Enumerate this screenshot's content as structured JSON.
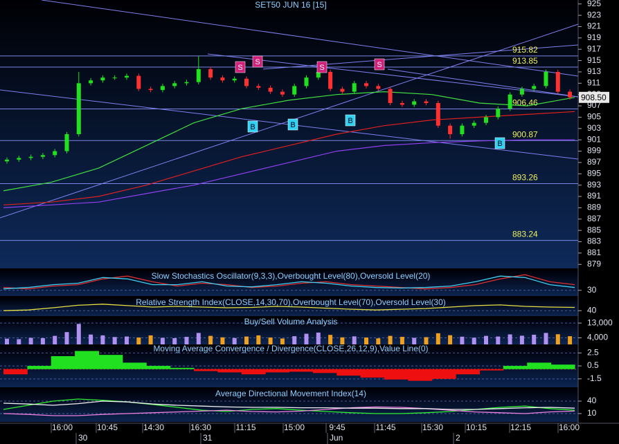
{
  "chart_data": [
    {
      "type": "candlestick",
      "title": "SET50 JUN 16   [15]",
      "open": [
        897.2,
        897.5,
        897.8,
        898,
        898.3,
        899,
        902,
        911,
        911.5,
        912,
        912,
        912.3,
        910,
        909.8,
        910.5,
        911,
        911.2,
        913.5,
        912,
        911.5,
        911.8,
        910.5,
        910.2,
        909.5,
        909,
        910.5,
        912,
        913,
        910,
        909.5,
        911,
        910.5,
        910,
        907.5,
        907.2,
        907.8,
        907.5,
        903.5,
        902,
        903.5,
        904,
        905,
        906.5,
        909,
        910,
        910.5,
        913,
        909.5
      ],
      "high": [
        897.9,
        898.2,
        898.4,
        898.7,
        899.4,
        902.4,
        913,
        911.9,
        912.4,
        912.4,
        912.7,
        912.7,
        910.4,
        910.9,
        911.4,
        911.6,
        915.8,
        913.9,
        912.4,
        912.2,
        912.2,
        910.9,
        910.6,
        909.9,
        910.9,
        912.4,
        914,
        913.4,
        910.4,
        911.4,
        911.4,
        910.9,
        910.4,
        907.9,
        908.2,
        908.2,
        907.9,
        903.9,
        903.9,
        904.4,
        905.4,
        906.9,
        909.4,
        910.4,
        910.9,
        913.4,
        913.4,
        909.9
      ],
      "low": [
        896.8,
        897.1,
        897.4,
        897.6,
        897.9,
        898.6,
        901.6,
        910.6,
        911.1,
        911.6,
        911.6,
        909.6,
        909.4,
        909.4,
        910.1,
        910.6,
        910.8,
        911.6,
        911.1,
        911.1,
        910.1,
        909.8,
        909.1,
        908.6,
        908.6,
        910.1,
        911.6,
        909.6,
        909.1,
        909.1,
        910.1,
        909.6,
        907.1,
        906.8,
        906.8,
        907.1,
        903.1,
        901.2,
        901.6,
        903.1,
        903.6,
        904.6,
        906.1,
        908.6,
        909.6,
        910.1,
        909.1,
        908.1
      ],
      "close": [
        897.5,
        897.8,
        898,
        898.3,
        899,
        902,
        911,
        911.5,
        912,
        912,
        912.3,
        910,
        909.8,
        910.5,
        911,
        911.2,
        913.5,
        912,
        911.5,
        911.8,
        910.5,
        910.2,
        909.5,
        909,
        910.5,
        912,
        913,
        910,
        909.5,
        911,
        910.5,
        910,
        907.5,
        907.2,
        907.8,
        907.5,
        903.5,
        902,
        903.5,
        904,
        905,
        906.5,
        909,
        910,
        910.5,
        913,
        909.5,
        908.5
      ],
      "ylim": [
        878.3,
        925.7
      ],
      "yticks": [
        879,
        881,
        883,
        885,
        887,
        889,
        891,
        893,
        895,
        897,
        899,
        901,
        903,
        905,
        907,
        909,
        911,
        913,
        915,
        917,
        919,
        921,
        923,
        925
      ],
      "levels": [
        {
          "value": 915.82,
          "label": "915.82"
        },
        {
          "value": 913.85,
          "label": "913.85"
        },
        {
          "value": 906.46,
          "label": "906.46"
        },
        {
          "value": 900.87,
          "label": "900.87"
        },
        {
          "value": 893.26,
          "label": "893.26"
        },
        {
          "value": 883.24,
          "label": "883.24"
        }
      ],
      "last": {
        "value": 908.5,
        "label": "908.50"
      },
      "overlays": [
        {
          "color": "#e02020",
          "values": [
            889.5,
            890,
            891,
            893,
            895.5,
            898,
            900,
            902,
            903.5,
            904.5,
            905,
            905.5,
            906
          ]
        },
        {
          "color": "#40e040",
          "values": [
            892,
            893.5,
            896,
            900,
            904,
            906.5,
            908,
            909,
            909.5,
            909,
            907.5,
            907,
            908.5
          ]
        },
        {
          "color": "#9040f0",
          "values": [
            889,
            889.5,
            890,
            891.5,
            893,
            895,
            897,
            899,
            900,
            900.5,
            900.8,
            901,
            901
          ]
        }
      ],
      "signals": [
        {
          "label": "S"
        },
        {
          "label": "S"
        },
        {
          "label": "S"
        },
        {
          "label": "S"
        },
        {
          "label": "B"
        },
        {
          "label": "B"
        },
        {
          "label": "B"
        },
        {
          "label": "B"
        }
      ],
      "time_labels": [
        "16:00",
        "10:45",
        "14:30",
        "16:30",
        "11:15",
        "15:00",
        "9:45",
        "11:45",
        "15:30",
        "10:15",
        "12:15",
        "16:00"
      ],
      "date_labels": [
        "30",
        "31",
        "Jun",
        "2"
      ]
    },
    {
      "type": "line",
      "title": "Slow Stochastics Oscillator(9,3,3),Overbought Level(80),Oversold Level(20)",
      "ylim": [
        10,
        100
      ],
      "yticks": [
        30
      ],
      "series": [
        {
          "color": "#e03030",
          "values": [
            40,
            35,
            45,
            50,
            70,
            80,
            60,
            45,
            55,
            50,
            40,
            45,
            55,
            60,
            50,
            45,
            40,
            35,
            40,
            50,
            70,
            85,
            60,
            50
          ]
        },
        {
          "color": "#40d0f0",
          "values": [
            35,
            40,
            50,
            55,
            75,
            70,
            50,
            50,
            60,
            45,
            42,
            50,
            60,
            55,
            45,
            40,
            38,
            40,
            45,
            60,
            80,
            75,
            50,
            40
          ]
        }
      ]
    },
    {
      "type": "line",
      "title": "Relative Strength Index(CLOSE,14,30,70),Overbought Level(70),Oversold Level(30)",
      "ylim": [
        25,
        75
      ],
      "yticks": [
        40
      ],
      "series": [
        {
          "color": "#e8e040",
          "values": [
            40,
            42,
            48,
            55,
            58,
            54,
            50,
            52,
            50,
            48,
            49,
            52,
            50,
            47,
            44,
            42,
            44,
            46,
            50,
            54,
            56,
            52,
            50,
            49
          ]
        }
      ]
    },
    {
      "type": "bar",
      "title": "Buy/Sell Volume Analysis",
      "ylim": [
        0,
        16000
      ],
      "yticks": [
        {
          "value": 13000,
          "label": "13,000"
        },
        {
          "value": 4000,
          "label": "4,000"
        }
      ],
      "values": [
        3500,
        3200,
        4000,
        3800,
        5200,
        7500,
        12500,
        6000,
        5500,
        4500,
        4800,
        4200,
        5500,
        4000,
        3800,
        4600,
        7000,
        5200,
        4300,
        3900,
        4800,
        5500,
        4200,
        3600,
        5000,
        6500,
        7200,
        5800,
        4300,
        4900,
        4200,
        3700,
        5200,
        4600,
        4000,
        4400,
        6800,
        5600,
        4700,
        4100,
        5200,
        4800,
        6100,
        5300,
        5900,
        7000,
        6200,
        5000
      ]
    },
    {
      "type": "histogram",
      "title": "Moving Average Convergence / Divergence(CLOSE,26,12,9),Value Line(0)",
      "ylim": [
        -2.8,
        3.6
      ],
      "yticks": [
        2.5,
        0.5,
        -1.5
      ],
      "values": [
        -0.8,
        0.5,
        2,
        2.8,
        2.2,
        1,
        0.5,
        0.2,
        -0.3,
        -0.5,
        -0.8,
        -0.5,
        -0.4,
        -0.6,
        -1,
        -1.3,
        -1.6,
        -1.8,
        -1.5,
        -0.8,
        -0.2,
        0.5,
        1,
        0.7
      ]
    },
    {
      "type": "line",
      "title": "Average Directional Movement Index(14)",
      "ylim": [
        -10,
        70
      ],
      "yticks": [
        40,
        10
      ],
      "series": [
        {
          "color": "#30f030",
          "values": [
            20,
            30,
            40,
            45,
            42,
            38,
            32,
            25,
            18,
            15,
            20,
            22,
            18,
            15,
            12,
            10,
            10,
            12,
            15,
            20,
            25,
            28,
            22,
            18
          ]
        },
        {
          "color": "#f080e0",
          "values": [
            10,
            8,
            5,
            5,
            8,
            10,
            12,
            14,
            16,
            18,
            15,
            14,
            16,
            20,
            24,
            26,
            25,
            22,
            18,
            14,
            12,
            10,
            14,
            16
          ]
        },
        {
          "color": "#f0f0f0",
          "values": [
            35,
            33,
            30,
            34,
            40,
            38,
            33,
            30,
            28,
            26,
            25,
            25,
            24,
            24,
            23,
            23,
            22,
            22,
            20,
            20,
            22,
            24,
            25,
            23
          ]
        }
      ]
    }
  ]
}
